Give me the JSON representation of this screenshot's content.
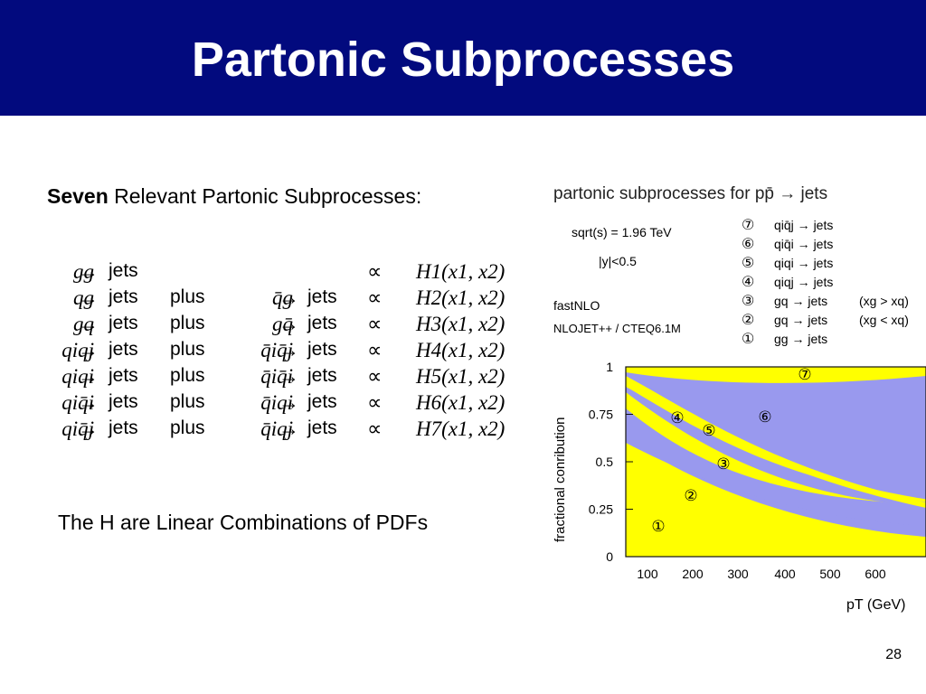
{
  "slide": {
    "title": "Partonic Subprocesses",
    "subtitle_bold": "Seven",
    "subtitle_rest": " Relevant Partonic Subprocesses:",
    "note": "The H are Linear Combinations of PDFs",
    "page_number": "28"
  },
  "equations": [
    {
      "lhs": "gg",
      "arrow": "→",
      "jets": "jets",
      "plus": "",
      "rhs": "",
      "rhs_arrow": "",
      "rhs_jets": "",
      "prop": "∝",
      "h": "H1(x1, x2)"
    },
    {
      "lhs": "qg",
      "arrow": "→",
      "jets": "jets",
      "plus": "plus",
      "rhs": "q̄g",
      "rhs_arrow": "→",
      "rhs_jets": "jets",
      "prop": "∝",
      "h": "H2(x1, x2)"
    },
    {
      "lhs": "gq",
      "arrow": "→",
      "jets": "jets",
      "plus": "plus",
      "rhs": "gq̄",
      "rhs_arrow": "→",
      "rhs_jets": "jets",
      "prop": "∝",
      "h": "H3(x1, x2)"
    },
    {
      "lhs": "qiqj",
      "arrow": "→",
      "jets": "jets",
      "plus": "plus",
      "rhs": "q̄iq̄j",
      "rhs_arrow": "→",
      "rhs_jets": "jets",
      "prop": "∝",
      "h": "H4(x1, x2)"
    },
    {
      "lhs": "qiqi",
      "arrow": "→",
      "jets": "jets",
      "plus": "plus",
      "rhs": "q̄iq̄i",
      "rhs_arrow": "→",
      "rhs_jets": "jets",
      "prop": "∝",
      "h": "H5(x1, x2)"
    },
    {
      "lhs": "qiq̄i",
      "arrow": "→",
      "jets": "jets",
      "plus": "plus",
      "rhs": "q̄iqi",
      "rhs_arrow": "→",
      "rhs_jets": "jets",
      "prop": "∝",
      "h": "H6(x1, x2)"
    },
    {
      "lhs": "qiq̄j",
      "arrow": "→",
      "jets": "jets",
      "plus": "plus",
      "rhs": "q̄iqj",
      "rhs_arrow": "→",
      "rhs_jets": "jets",
      "prop": "∝",
      "h": "H7(x1, x2)"
    }
  ],
  "figure": {
    "title": "partonic subprocesses for  pp̄ → jets",
    "sqrt_s": "sqrt(s) = 1.96 TeV",
    "rapidity": "|y|<0.5",
    "program": "fastNLO",
    "generator": "NLOJET++ / CTEQ6.1M",
    "legend": [
      {
        "marker": "⑦",
        "process": "qiq̄j → jets",
        "cond": ""
      },
      {
        "marker": "⑥",
        "process": "qiq̄i → jets",
        "cond": ""
      },
      {
        "marker": "⑤",
        "process": "qiqi → jets",
        "cond": ""
      },
      {
        "marker": "④",
        "process": "qiqj → jets",
        "cond": ""
      },
      {
        "marker": "③",
        "process": "gq → jets",
        "cond": "(xg > xq)"
      },
      {
        "marker": "②",
        "process": "gq → jets",
        "cond": "(xg < xq)"
      },
      {
        "marker": "①",
        "process": "gg → jets",
        "cond": ""
      }
    ],
    "ylabel": "fractional conribution",
    "xlabel": "pT (GeV)",
    "yticks": [
      "0",
      "0.25",
      "0.5",
      "0.75",
      "1"
    ],
    "xticks": [
      "100",
      "200",
      "300",
      "400",
      "500",
      "600"
    ],
    "region_markers": [
      "①",
      "②",
      "③",
      "④",
      "⑤",
      "⑥",
      "⑦"
    ],
    "colors": {
      "yellow": "#ffff00",
      "blue": "#9999ee",
      "title_bar": "#020a7e"
    }
  }
}
